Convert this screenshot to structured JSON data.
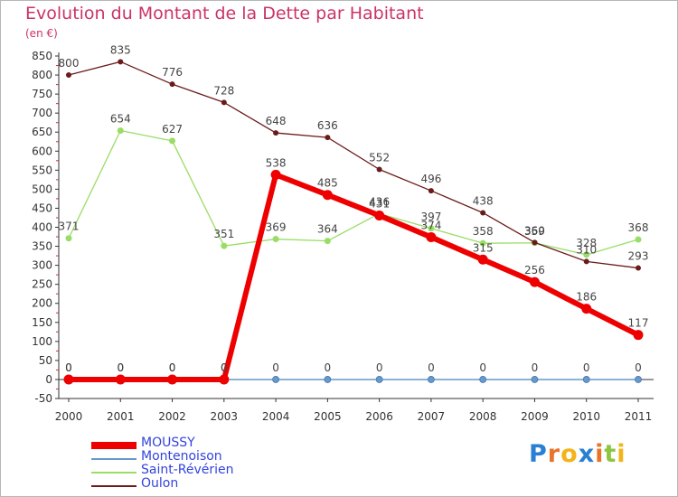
{
  "title": "Evolution du Montant de la Dette par Habitant",
  "unit_label": "(en €)",
  "logo_text": "Proxiti",
  "chart_data": {
    "type": "line",
    "title": "Evolution du Montant de la Dette par Habitant",
    "ylabel": "(en €)",
    "xlabel": "",
    "categories": [
      "2000",
      "2001",
      "2002",
      "2003",
      "2004",
      "2005",
      "2006",
      "2007",
      "2008",
      "2009",
      "2010",
      "2011"
    ],
    "ylim": [
      -50,
      850
    ],
    "yticks": [
      -50,
      0,
      50,
      100,
      150,
      200,
      250,
      300,
      350,
      400,
      450,
      500,
      550,
      600,
      650,
      700,
      750,
      800,
      850
    ],
    "grid": false,
    "legend_position": "bottom-left",
    "series": [
      {
        "name": "MOUSSY",
        "color": "#ee0000",
        "values": [
          0,
          0,
          0,
          0,
          538,
          485,
          431,
          374,
          315,
          256,
          186,
          117
        ]
      },
      {
        "name": "Montenoison",
        "color": "#6699cc",
        "values": [
          0,
          0,
          0,
          0,
          0,
          0,
          0,
          0,
          0,
          0,
          0,
          0
        ]
      },
      {
        "name": "Saint-Révérien",
        "color": "#99dd66",
        "values": [
          371,
          654,
          627,
          351,
          369,
          364,
          436,
          397,
          358,
          359,
          328,
          368
        ]
      },
      {
        "name": "Oulon",
        "color": "#6b1a1a",
        "values": [
          800,
          835,
          776,
          728,
          648,
          636,
          552,
          496,
          438,
          360,
          310,
          293
        ]
      }
    ]
  }
}
